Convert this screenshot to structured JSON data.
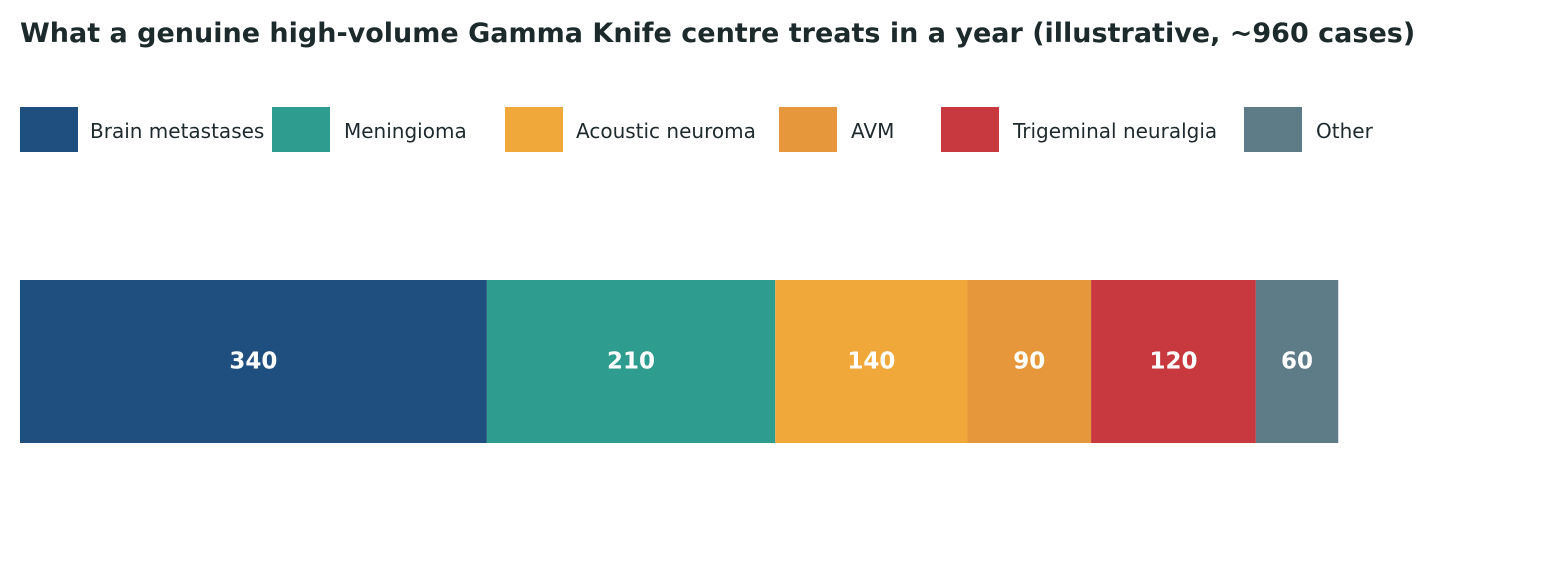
{
  "chart_data": {
    "type": "bar",
    "orientation": "horizontal",
    "stacked": true,
    "title": "What a genuine high-volume Gamma Knife centre treats in a year (illustrative, ~960 cases)",
    "categories": [
      ""
    ],
    "series": [
      {
        "name": "Brain metastases",
        "values": [
          340
        ],
        "color": "#1f4f7e",
        "label": "340"
      },
      {
        "name": "Meningioma",
        "values": [
          210
        ],
        "color": "#2e9c8e",
        "label": "210"
      },
      {
        "name": "Acoustic neuroma",
        "values": [
          140
        ],
        "color": "#f0a83b",
        "label": "140"
      },
      {
        "name": "AVM",
        "values": [
          90
        ],
        "color": "#e7973b",
        "label": "90"
      },
      {
        "name": "Trigeminal neuralgia",
        "values": [
          120
        ],
        "color": "#c8393f",
        "label": "120"
      },
      {
        "name": "Other",
        "values": [
          60
        ],
        "color": "#5e7b88",
        "label": "60"
      }
    ],
    "xlim": [
      0,
      1104
    ],
    "legend_position": "top",
    "grid": false,
    "axes_visible": false
  }
}
